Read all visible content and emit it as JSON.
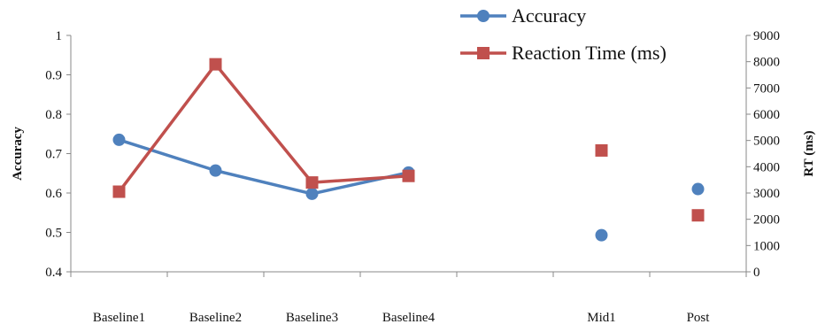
{
  "chart_data": {
    "type": "line",
    "categories": [
      "Baseline1",
      "Baseline2",
      "Baseline3",
      "Baseline4",
      "",
      "Mid1",
      "Post"
    ],
    "y_left": {
      "label": "Accuracy",
      "lim": [
        0.4,
        1.0
      ],
      "ticks": [
        "0.4",
        "0.5",
        "0.6",
        "0.7",
        "0.8",
        "0.9",
        "1"
      ]
    },
    "y_right": {
      "label": "RT (ms)",
      "lim": [
        0,
        9000
      ],
      "ticks": [
        "0",
        "1000",
        "2000",
        "3000",
        "4000",
        "5000",
        "6000",
        "7000",
        "8000",
        "9000"
      ]
    },
    "series": [
      {
        "name": "Accuracy",
        "axis": "left",
        "marker": "circle",
        "color": "#4f81bd",
        "values": [
          0.735,
          0.657,
          0.598,
          0.652,
          null,
          0.493,
          0.61
        ],
        "connected_upto": 3
      },
      {
        "name": "Reaction Time (ms)",
        "axis": "right",
        "marker": "square",
        "color": "#c0504d",
        "values": [
          3050,
          7900,
          3400,
          3650,
          null,
          4620,
          2150
        ],
        "connected_upto": 3
      }
    ],
    "legend": "top-right",
    "grid": false
  }
}
